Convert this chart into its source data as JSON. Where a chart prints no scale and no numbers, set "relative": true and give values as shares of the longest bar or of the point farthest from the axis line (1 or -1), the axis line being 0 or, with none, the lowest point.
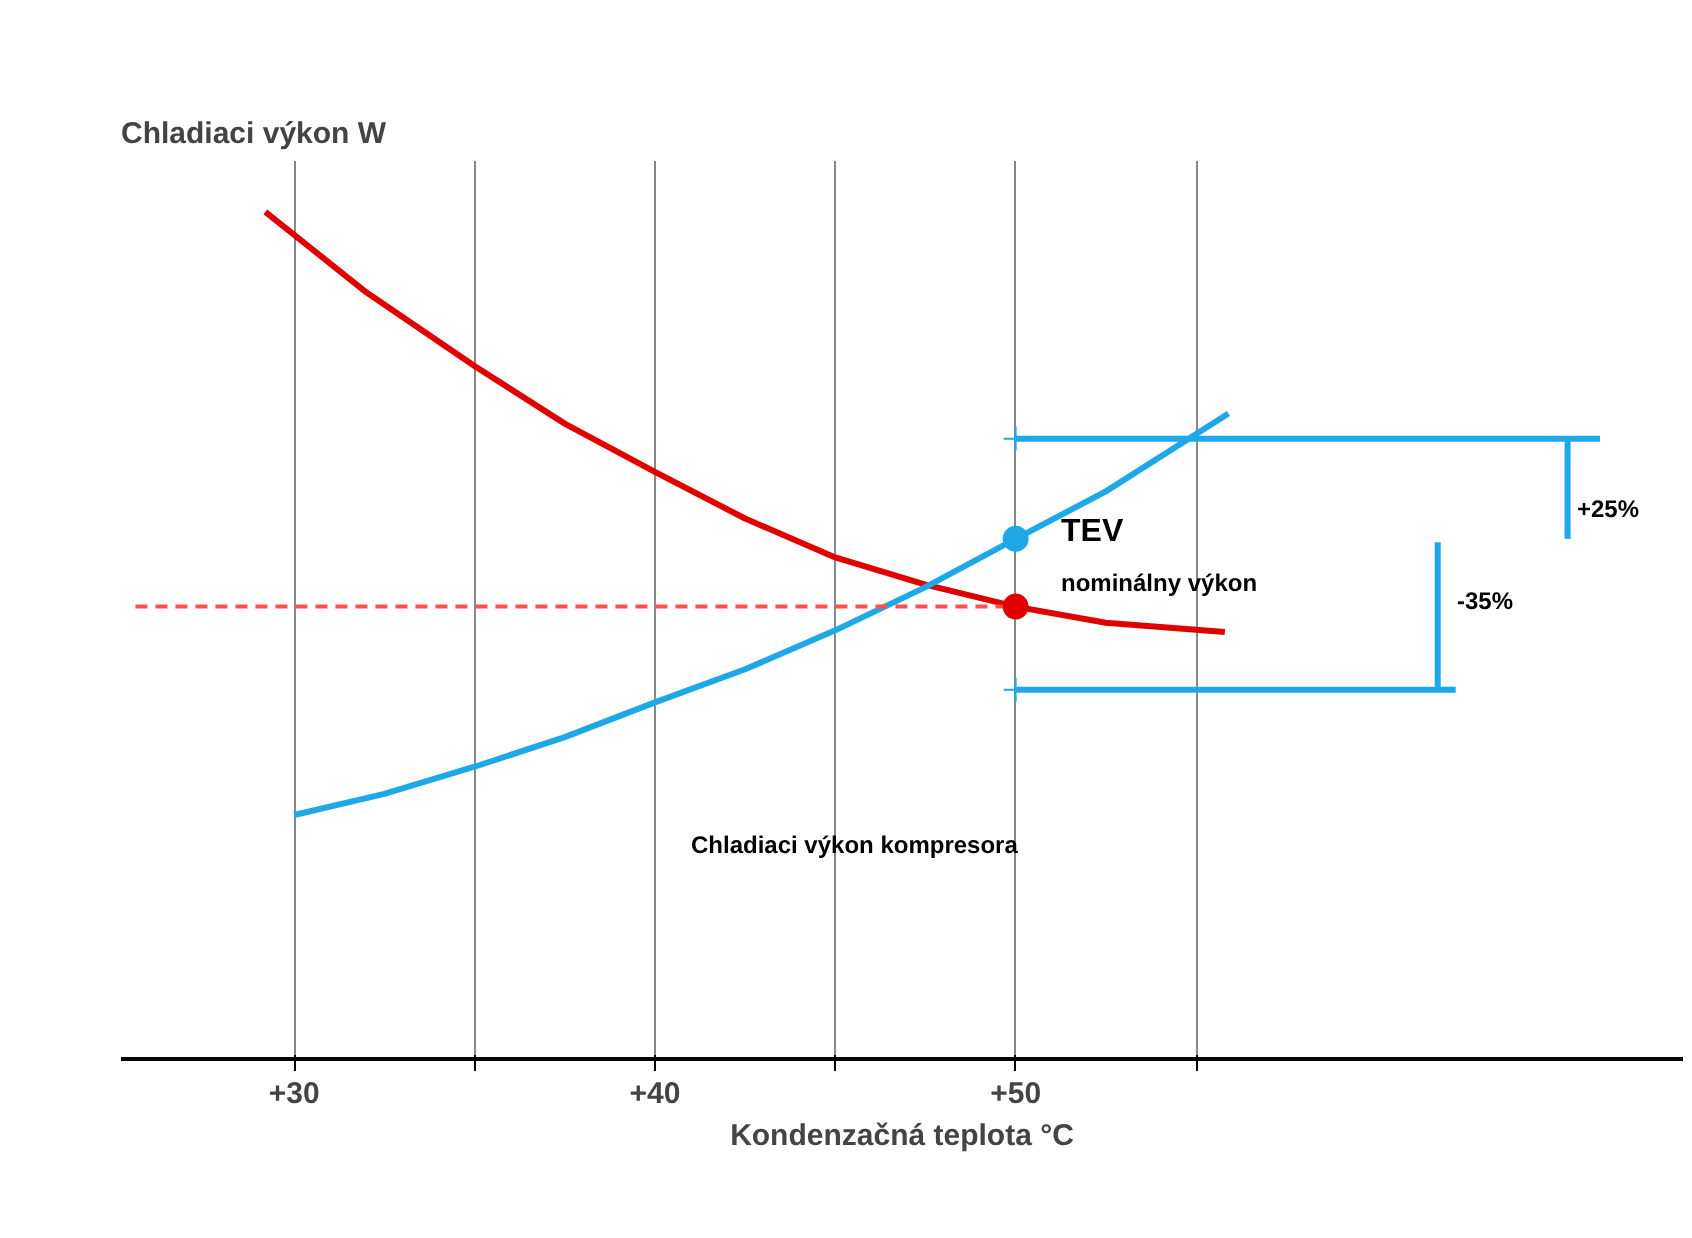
{
  "chart_data": {
    "type": "line",
    "relative": true,
    "xlabel": "Kondenzačná teplota °C",
    "ylabel": "Chladiaci výkon W",
    "xlim": [
      25.2,
      68.5
    ],
    "xticks": [
      {
        "value": 30,
        "label": "+30"
      },
      {
        "value": 35,
        "label": null
      },
      {
        "value": 40,
        "label": "+40"
      },
      {
        "value": 45,
        "label": null
      },
      {
        "value": 50,
        "label": "+50"
      },
      {
        "value": 55,
        "label": null
      }
    ],
    "grid": "x",
    "marker": "none",
    "series": [
      {
        "color": "#e00000",
        "x": [
          29.2,
          32,
          35,
          37.5,
          40,
          42.5,
          45,
          47.5,
          50,
          52.5,
          55.8
        ],
        "values": [
          1,
          0.905,
          0.818,
          0.75,
          0.693,
          0.638,
          0.592,
          0.56,
          0.534,
          0.515,
          0.504
        ]
      },
      {
        "color": "#1ea8e8",
        "x": [
          30,
          32.5,
          35,
          37.5,
          40,
          42.5,
          45,
          47.5,
          50,
          52.5,
          55.9
        ],
        "values": [
          0.288,
          0.313,
          0.345,
          0.38,
          0.421,
          0.46,
          0.506,
          0.557,
          0.614,
          0.67,
          0.762
        ]
      },
      {
        "type": "line",
        "color": "#ff5050",
        "line_style": "dashed",
        "x": [
          50,
          25.6
        ],
        "values": [
          0.534,
          0.534
        ]
      },
      {
        "type": "line",
        "color": "#1ea8e8",
        "x": [
          50,
          66.2
        ],
        "values": [
          0.732,
          0.732
        ]
      },
      {
        "type": "line",
        "color": "#1ea8e8",
        "x": [
          50,
          62.2
        ],
        "values": [
          0.436,
          0.436
        ]
      },
      {
        "type": "line",
        "color": "#1ea8e8",
        "x": [
          65.3,
          65.3
        ],
        "values": [
          0.614,
          0.732
        ]
      },
      {
        "type": "line",
        "color": "#1ea8e8",
        "x": [
          61.7,
          61.7
        ],
        "values": [
          0.61,
          0.436
        ]
      },
      {
        "type": "scatter",
        "marker": "circle",
        "color": "#1ea8e8",
        "x": [
          50
        ],
        "values": [
          0.614
        ]
      },
      {
        "type": "scatter",
        "marker": "circle",
        "color": "#e00000",
        "x": [
          50
        ],
        "values": [
          0.534
        ]
      },
      {
        "type": "scatter",
        "marker": "cross",
        "color": "#1ea8e8",
        "x": [
          50,
          50
        ],
        "values": [
          0.732,
          0.436
        ]
      }
    ],
    "annotations": [
      "TEV",
      "nominálny výkon",
      "Chladiaci výkon kompresora",
      "+25%",
      "-35%"
    ]
  }
}
